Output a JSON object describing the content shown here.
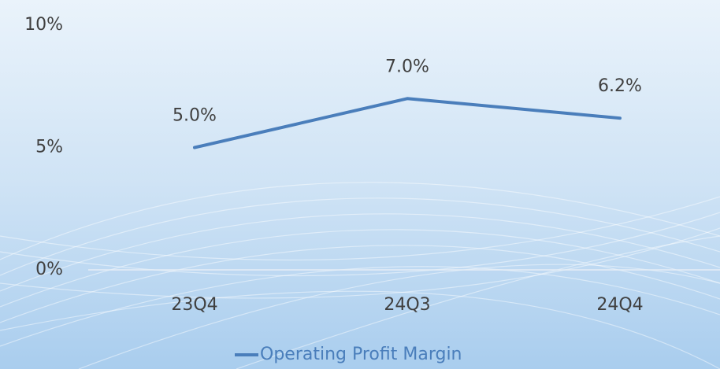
{
  "chart_data": {
    "type": "line",
    "categories": [
      "23Q4",
      "24Q3",
      "24Q4"
    ],
    "series": [
      {
        "name": "Operating Profit Margin",
        "color": "#4a7ebb",
        "values": [
          5.0,
          7.0,
          6.2
        ],
        "value_labels": [
          "5.0%",
          "7.0%",
          "6.2%"
        ]
      }
    ],
    "ylim": [
      0,
      10
    ],
    "yticks": [
      {
        "value": 0,
        "label": "0%"
      },
      {
        "value": 5,
        "label": "5%"
      },
      {
        "value": 10,
        "label": "10%"
      }
    ],
    "legend": "bottom"
  }
}
